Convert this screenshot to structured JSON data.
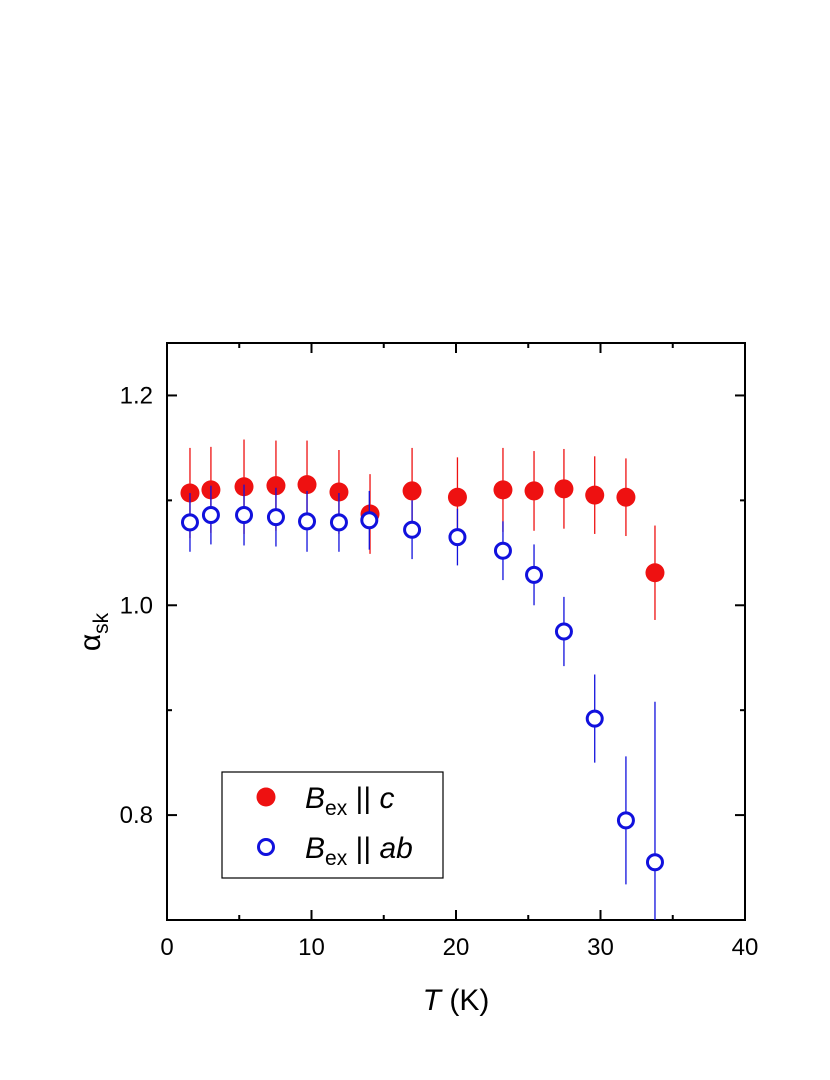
{
  "chart_data": {
    "type": "scatter",
    "x_label": "T (K)",
    "y_label": "αsk",
    "xlim": [
      0,
      40
    ],
    "ylim": [
      0.7,
      1.25
    ],
    "xticks": [
      0,
      10,
      20,
      30,
      40
    ],
    "yticks": [
      {
        "value": 0.8,
        "label": "0.8"
      },
      {
        "value": 1.0,
        "label": "1.0"
      },
      {
        "value": 1.2,
        "label": "1.2"
      }
    ],
    "xminorticks": [
      5,
      15,
      25,
      35
    ],
    "yminorticks": [
      0.9,
      1.1
    ],
    "legend": "bottom-left",
    "series": [
      {
        "name": "Bex || c",
        "color": "#ee1111",
        "marker": "filled",
        "x": [
          1.59,
          3.04,
          5.33,
          7.54,
          9.69,
          11.9,
          14.05,
          16.96,
          20.1,
          23.25,
          25.4,
          27.47,
          29.6,
          31.76,
          33.77
        ],
        "values": [
          1.107,
          1.11,
          1.113,
          1.114,
          1.115,
          1.108,
          1.087,
          1.109,
          1.103,
          1.11,
          1.109,
          1.111,
          1.105,
          1.103,
          1.031
        ],
        "errors": [
          0.043,
          0.041,
          0.045,
          0.043,
          0.042,
          0.04,
          0.038,
          0.041,
          0.038,
          0.04,
          0.038,
          0.038,
          0.037,
          0.037,
          0.045
        ]
      },
      {
        "name": "Bex || ab",
        "color": "#1111dd",
        "marker": "open",
        "x": [
          1.59,
          3.04,
          5.33,
          7.54,
          9.69,
          11.9,
          14.0,
          16.96,
          20.1,
          23.25,
          25.4,
          27.47,
          29.6,
          31.76,
          33.77
        ],
        "values": [
          1.079,
          1.086,
          1.086,
          1.084,
          1.08,
          1.079,
          1.081,
          1.072,
          1.065,
          1.052,
          1.029,
          0.975,
          0.892,
          0.795,
          0.755
        ],
        "errors": [
          0.028,
          0.028,
          0.029,
          0.028,
          0.029,
          0.028,
          0.028,
          0.028,
          0.027,
          0.028,
          0.029,
          0.033,
          0.042,
          0.061,
          0.153
        ]
      }
    ]
  }
}
